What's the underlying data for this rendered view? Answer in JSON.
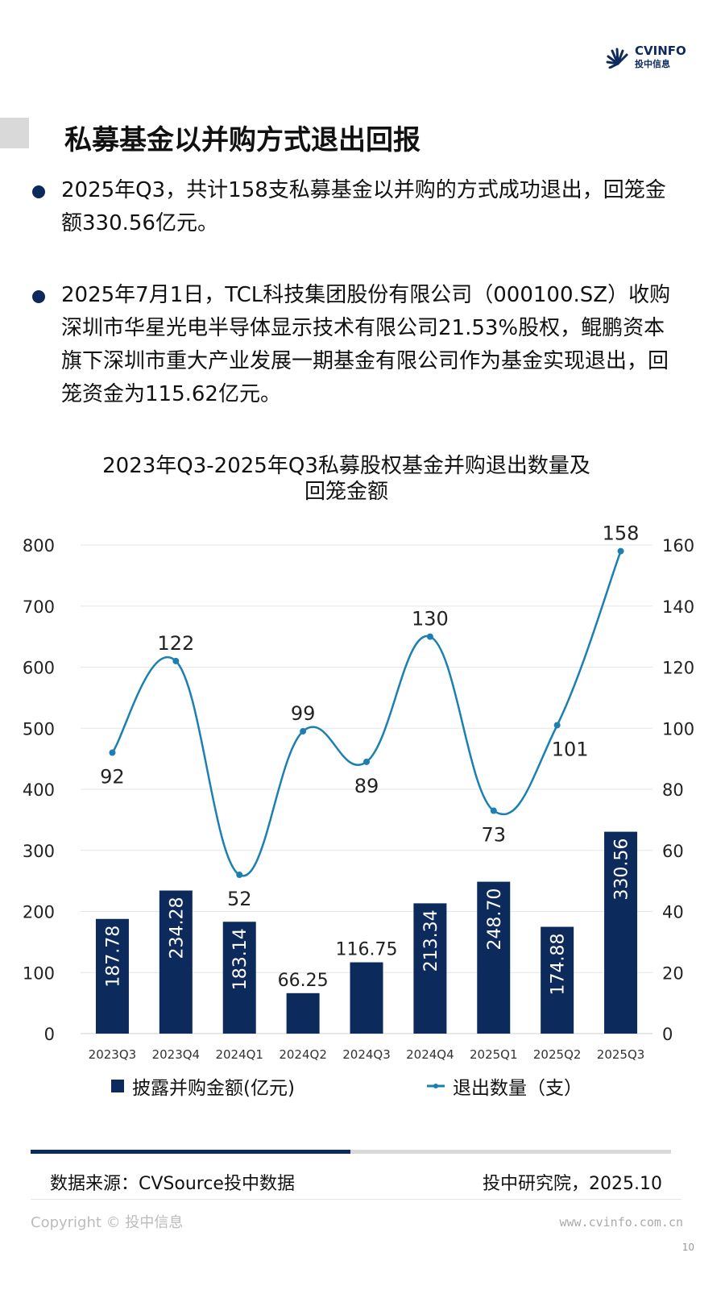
{
  "watermark": {
    "brand": "CVSource",
    "sub": "投中数据"
  },
  "logo": {
    "name": "CVINFO",
    "sub": "投中信息"
  },
  "title": "私募基金以并购方式退出回报",
  "bullets": [
    "2025年Q3，共计158支私募基金以并购的方式成功退出，回笼金额330.56亿元。",
    "2025年7月1日，TCL科技集团股份有限公司（000100.SZ）收购深圳市华星光电半导体显示技术有限公司21.53%股权，鲲鹏资本旗下深圳市重大产业发展一期基金有限公司作为基金实现退出，回笼资金为115.62亿元。"
  ],
  "chart_data": {
    "type": "bar+line",
    "title": "2023年Q3-2025年Q3私募股权基金并购退出数量及回笼金额",
    "title_lines": [
      "2023年Q3-2025年Q3私募股权基金并购退出数量及",
      "回笼金额"
    ],
    "categories": [
      "2023Q3",
      "2023Q4",
      "2024Q1",
      "2024Q2",
      "2024Q3",
      "2024Q4",
      "2025Q1",
      "2025Q2",
      "2025Q3"
    ],
    "series": [
      {
        "name": "披露并购金额(亿元)",
        "type": "bar",
        "axis": "left",
        "values": [
          187.78,
          234.28,
          183.14,
          66.25,
          116.75,
          213.34,
          248.7,
          174.88,
          330.56
        ],
        "labels": [
          "187.78",
          "234.28",
          "183.14",
          "66.25",
          "116.75",
          "213.34",
          "248.70",
          "174.88",
          "330.56"
        ],
        "color": "#0d2a5c"
      },
      {
        "name": "退出数量（支）",
        "type": "line",
        "axis": "right",
        "values": [
          92,
          122,
          52,
          99,
          89,
          130,
          73,
          101,
          158
        ],
        "label_pos": [
          "below",
          "above",
          "below",
          "above",
          "below",
          "above",
          "below",
          "below",
          "above"
        ],
        "color": "#1b7fb1"
      }
    ],
    "left_axis": {
      "ylim": [
        0,
        800
      ],
      "ticks": [
        "0",
        "100",
        "200",
        "300",
        "400",
        "500",
        "600",
        "700",
        "800"
      ]
    },
    "right_axis": {
      "ylim": [
        0,
        160
      ],
      "ticks": [
        "0",
        "20",
        "40",
        "60",
        "80",
        "100",
        "120",
        "140",
        "160"
      ]
    },
    "grid": true,
    "legend": "bottom"
  },
  "footer": {
    "source": "数据来源：CVSource投中数据",
    "org": "投中研究院，2025.10",
    "copyright": "Copyright © 投中信息",
    "url": "www.cvinfo.com.cn",
    "page": "10"
  }
}
